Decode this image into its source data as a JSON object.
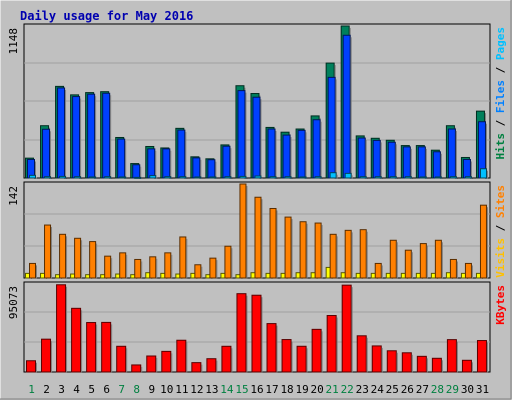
{
  "chart_data": {
    "type": "bar",
    "title": "Daily usage for May 2016",
    "categories": [
      "1",
      "2",
      "3",
      "4",
      "5",
      "6",
      "7",
      "8",
      "9",
      "10",
      "11",
      "12",
      "13",
      "14",
      "15",
      "16",
      "17",
      "18",
      "19",
      "20",
      "21",
      "22",
      "23",
      "24",
      "25",
      "26",
      "27",
      "28",
      "29",
      "30",
      "31"
    ],
    "weekend_days": [
      "1",
      "7",
      "8",
      "14",
      "15",
      "21",
      "22",
      "28",
      "29"
    ],
    "panels": [
      {
        "id": "top",
        "ymax_label": "1148",
        "ymax": 1148,
        "side_labels": [
          {
            "text": "Hits",
            "color": "#008040"
          },
          {
            "text": " / ",
            "color": "#000000"
          },
          {
            "text": "Files",
            "color": "#0080ff"
          },
          {
            "text": " / ",
            "color": "#000000"
          },
          {
            "text": "Pages",
            "color": "#00c0ff"
          }
        ],
        "series": [
          {
            "name": "Hits",
            "color": "#00805c",
            "values": [
              150,
              395,
              692,
              628,
              645,
              652,
              306,
              109,
              238,
              227,
              375,
              160,
              145,
              250,
              697,
              638,
              382,
              346,
              370,
              469,
              868,
              1148,
              318,
              300,
              285,
              245,
              245,
              210,
              395,
              155,
              505
            ]
          },
          {
            "name": "Files",
            "color": "#0040ff",
            "values": [
              140,
              368,
              680,
              615,
              633,
              640,
              294,
              100,
              220,
              220,
              362,
              152,
              138,
              240,
              660,
              610,
              370,
              324,
              360,
              440,
              760,
              1078,
              302,
              284,
              270,
              235,
              235,
              198,
              370,
              140,
              425
            ]
          },
          {
            "name": "Pages",
            "color": "#00c0ff",
            "values": [
              20,
              10,
              12,
              10,
              8,
              10,
              8,
              5,
              18,
              10,
              10,
              8,
              8,
              10,
              12,
              15,
              10,
              10,
              8,
              10,
              40,
              35,
              10,
              10,
              10,
              10,
              8,
              8,
              10,
              10,
              70
            ]
          }
        ]
      },
      {
        "id": "middle",
        "ymax_label": "142",
        "ymax": 142,
        "side_labels": [
          {
            "text": "Visits",
            "color": "#ffc000"
          },
          {
            "text": " / ",
            "color": "#000000"
          },
          {
            "text": "Sites",
            "color": "#ff8000"
          }
        ],
        "series": [
          {
            "name": "Visits",
            "color": "#ffff00",
            "values": [
              7,
              7,
              5,
              6,
              5,
              5,
              6,
              5,
              8,
              7,
              6,
              7,
              5,
              7,
              5,
              8,
              7,
              7,
              8,
              8,
              16,
              8,
              7,
              7,
              7,
              7,
              7,
              7,
              8,
              7,
              7
            ]
          },
          {
            "name": "Sites",
            "color": "#ff8000",
            "values": [
              22,
              80,
              66,
              60,
              55,
              33,
              38,
              28,
              32,
              38,
              62,
              20,
              30,
              48,
              142,
              122,
              105,
              92,
              85,
              83,
              66,
              72,
              73,
              22,
              57,
              42,
              52,
              57,
              28,
              22,
              110
            ]
          }
        ]
      },
      {
        "id": "bottom",
        "ymax_label": "95073",
        "ymax": 95073,
        "side_labels": [
          {
            "text": "KBytes",
            "color": "#ff0000"
          }
        ],
        "series": [
          {
            "name": "KBytes",
            "color": "#ff0000",
            "values": [
              12160,
              35470,
              94250,
              68800,
              53440,
              53590,
              27780,
              7630,
              17290,
              22280,
              34310,
              10120,
              14370,
              27780,
              84620,
              82950,
              52300,
              35050,
              27800,
              46080,
              61030,
              93830,
              39130,
              28180,
              22930,
              20760,
              16930,
              14820,
              34980,
              12650,
              34000
            ]
          }
        ]
      }
    ]
  }
}
